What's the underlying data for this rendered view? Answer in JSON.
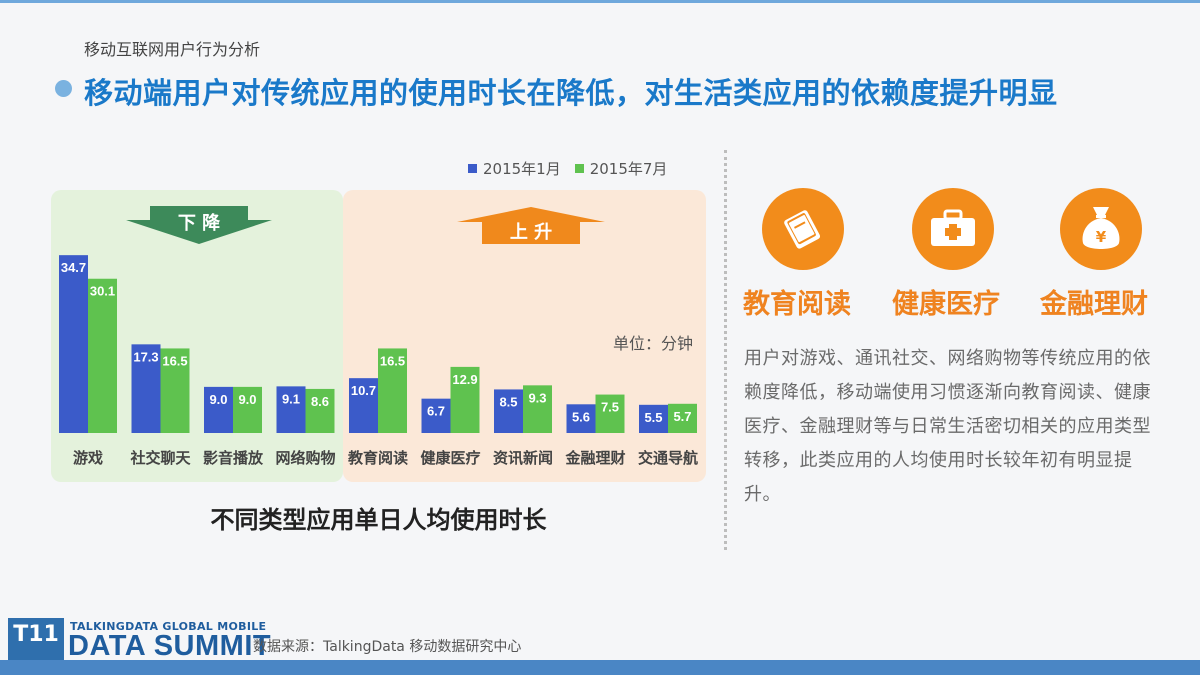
{
  "kicker": "移动互联网用户行为分析",
  "headline": "移动端用户对传统应用的使用时长在降低，对生活类应用的依赖度提升明显",
  "legend": [
    {
      "label": "2015年1月",
      "color": "#3b5bc9"
    },
    {
      "label": "2015年7月",
      "color": "#5fc24f"
    }
  ],
  "arrows": {
    "down": "下 降",
    "up": "上 升"
  },
  "unit": "单位：分钟",
  "chart_caption": "不同类型应用单日人均使用时长",
  "chart_data": {
    "type": "bar",
    "categories": [
      "游戏",
      "社交聊天",
      "影音播放",
      "网络购物",
      "教育阅读",
      "健康医疗",
      "资讯新闻",
      "金融理财",
      "交通导航"
    ],
    "series": [
      {
        "name": "2015年1月",
        "values": [
          34.7,
          17.3,
          9.0,
          9.1,
          10.7,
          6.7,
          8.5,
          5.6,
          5.5
        ]
      },
      {
        "name": "2015年7月",
        "values": [
          30.1,
          16.5,
          9.0,
          8.6,
          16.5,
          12.9,
          9.3,
          7.5,
          5.7
        ]
      }
    ],
    "data_labels": [
      [
        "34.7",
        "17.3",
        "9.0",
        "9.1",
        "10.7",
        "6.7",
        "8.5",
        "5.6",
        "5.5"
      ],
      [
        "30.1",
        "16.5",
        "9.0",
        "8.6",
        "16.5",
        "12.9",
        "9.3",
        "7.5",
        "5.7"
      ]
    ],
    "groups": [
      {
        "label": "下 降",
        "categories": [
          "游戏",
          "社交聊天",
          "影音播放",
          "网络购物"
        ]
      },
      {
        "label": "上 升",
        "categories": [
          "教育阅读",
          "健康医疗",
          "资讯新闻",
          "金融理财",
          "交通导航"
        ]
      }
    ],
    "ylim": [
      0,
      40
    ]
  },
  "highlights": [
    {
      "title": "教育阅读",
      "icon": "book-icon"
    },
    {
      "title": "健康医疗",
      "icon": "medical-kit-icon"
    },
    {
      "title": "金融理财",
      "icon": "money-bag-icon"
    }
  ],
  "body_text": "用户对游戏、通讯社交、网络购物等传统应用的依赖度降低，移动端使用习惯逐渐向教育阅读、健康医疗、金融理财等与日常生活密切相关的应用类型转移，此类应用的人均使用时长较年初有明显提升。",
  "footer": {
    "logo_badge": "T11",
    "logo_top": "TALKINGDATA GLOBAL MOBILE",
    "logo_main": "DATA SUMMIT",
    "source": "数据来源：TalkingData 移动数据研究中心"
  },
  "colors": {
    "headline": "#1a79c9",
    "accent": "#ef8320",
    "jan": "#3b5bc9",
    "jul": "#5fc24f"
  }
}
